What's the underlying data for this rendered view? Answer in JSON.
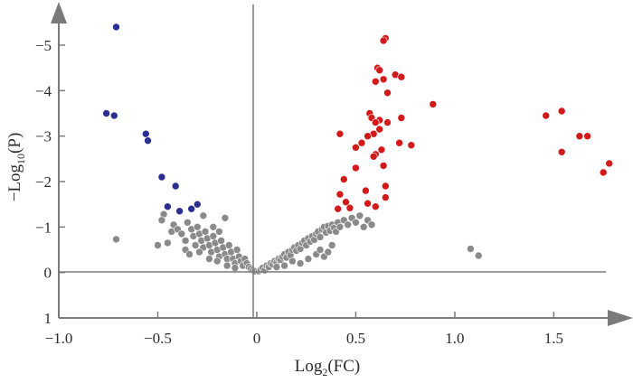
{
  "chart_data": {
    "type": "scatter",
    "title": "",
    "xlabel": {
      "base": "Log",
      "sub": "2",
      "rest": "(FC)"
    },
    "ylabel": {
      "base": "−Log",
      "sub": "10",
      "rest": "(P)"
    },
    "xlim": [
      -1.0,
      1.9
    ],
    "ylim": [
      1.0,
      -5.5
    ],
    "x_ticks": [
      -1.0,
      -0.5,
      0,
      0.5,
      1.0,
      1.5
    ],
    "x_tick_labels": [
      "−1.0",
      "−0.5",
      "0",
      "0.5",
      "1.0",
      "1.5"
    ],
    "y_ticks": [
      -5,
      -4,
      -3,
      -2,
      -1,
      0,
      1
    ],
    "y_tick_labels": [
      "−5",
      "−4",
      "−3",
      "−2",
      "−1",
      "0",
      "1"
    ],
    "grid": false,
    "colors": {
      "down": "#2c2f8f",
      "up": "#d21a1a",
      "ns": "#8a8a8a",
      "axis": "#7a7a7a"
    },
    "series": [
      {
        "group": "down",
        "points": [
          [
            -0.71,
            -5.4
          ],
          [
            -0.76,
            -3.5
          ],
          [
            -0.72,
            -3.45
          ],
          [
            -0.56,
            -3.05
          ],
          [
            -0.55,
            -2.9
          ],
          [
            -0.48,
            -2.1
          ],
          [
            -0.41,
            -1.9
          ],
          [
            -0.45,
            -1.45
          ],
          [
            -0.39,
            -1.35
          ],
          [
            -0.33,
            -1.4
          ],
          [
            -0.3,
            -1.5
          ]
        ]
      },
      {
        "group": "up",
        "points": [
          [
            0.65,
            -5.15
          ],
          [
            0.64,
            -5.1
          ],
          [
            0.61,
            -4.5
          ],
          [
            0.62,
            -4.45
          ],
          [
            0.7,
            -4.35
          ],
          [
            0.73,
            -4.3
          ],
          [
            0.64,
            -4.25
          ],
          [
            0.6,
            -4.2
          ],
          [
            0.66,
            -3.95
          ],
          [
            0.57,
            -3.5
          ],
          [
            0.89,
            -3.7
          ],
          [
            0.58,
            -3.4
          ],
          [
            0.62,
            -3.35
          ],
          [
            0.66,
            -3.3
          ],
          [
            0.6,
            -3.3
          ],
          [
            0.73,
            -3.4
          ],
          [
            0.62,
            -3.15
          ],
          [
            0.59,
            -3.05
          ],
          [
            0.56,
            -3.0
          ],
          [
            0.42,
            -3.05
          ],
          [
            0.53,
            -2.85
          ],
          [
            0.72,
            -2.85
          ],
          [
            0.78,
            -2.8
          ],
          [
            0.5,
            -2.75
          ],
          [
            0.63,
            -2.7
          ],
          [
            0.6,
            -2.6
          ],
          [
            0.59,
            -2.55
          ],
          [
            0.64,
            -2.35
          ],
          [
            0.5,
            -2.3
          ],
          [
            0.44,
            -2.05
          ],
          [
            0.65,
            -1.9
          ],
          [
            0.55,
            -1.8
          ],
          [
            0.42,
            -1.72
          ],
          [
            0.65,
            -1.65
          ],
          [
            0.45,
            -1.55
          ],
          [
            0.56,
            -1.52
          ],
          [
            0.6,
            -1.45
          ],
          [
            0.47,
            -1.42
          ],
          [
            0.41,
            -1.4
          ],
          [
            1.46,
            -3.45
          ],
          [
            1.54,
            -3.55
          ],
          [
            1.54,
            -2.65
          ],
          [
            1.63,
            -3.0
          ],
          [
            1.67,
            -3.0
          ],
          [
            1.78,
            -2.4
          ],
          [
            1.75,
            -2.2
          ]
        ]
      },
      {
        "group": "ns",
        "points": [
          [
            -0.71,
            -0.73
          ],
          [
            -0.47,
            -1.28
          ],
          [
            -0.48,
            -1.15
          ],
          [
            -0.5,
            -0.6
          ],
          [
            -0.45,
            -0.65
          ],
          [
            -0.43,
            -0.9
          ],
          [
            -0.42,
            -1.05
          ],
          [
            -0.4,
            -0.95
          ],
          [
            -0.38,
            -0.85
          ],
          [
            -0.36,
            -0.7
          ],
          [
            -0.35,
            -1.1
          ],
          [
            -0.33,
            -0.95
          ],
          [
            -0.32,
            -0.8
          ],
          [
            -0.31,
            -0.6
          ],
          [
            -0.3,
            -1.0
          ],
          [
            -0.29,
            -0.85
          ],
          [
            -0.28,
            -0.7
          ],
          [
            -0.27,
            -0.55
          ],
          [
            -0.26,
            -0.9
          ],
          [
            -0.25,
            -0.75
          ],
          [
            -0.24,
            -0.6
          ],
          [
            -0.23,
            -0.45
          ],
          [
            -0.22,
            -0.8
          ],
          [
            -0.21,
            -0.65
          ],
          [
            -0.2,
            -0.5
          ],
          [
            -0.19,
            -0.35
          ],
          [
            -0.18,
            -0.7
          ],
          [
            -0.17,
            -0.55
          ],
          [
            -0.16,
            -0.4
          ],
          [
            -0.15,
            -0.3
          ],
          [
            -0.14,
            -0.6
          ],
          [
            -0.13,
            -0.45
          ],
          [
            -0.12,
            -0.3
          ],
          [
            -0.11,
            -0.2
          ],
          [
            -0.1,
            -0.5
          ],
          [
            -0.09,
            -0.35
          ],
          [
            -0.08,
            -0.25
          ],
          [
            -0.07,
            -0.15
          ],
          [
            -0.06,
            -0.3
          ],
          [
            -0.05,
            -0.2
          ],
          [
            -0.04,
            -0.12
          ],
          [
            -0.03,
            -0.08
          ],
          [
            -0.02,
            -0.05
          ],
          [
            -0.01,
            -0.03
          ],
          [
            -0.16,
            -1.2
          ],
          [
            -0.27,
            -1.25
          ],
          [
            -0.22,
            -1.0
          ],
          [
            -0.19,
            -0.9
          ],
          [
            -0.36,
            -0.5
          ],
          [
            -0.34,
            -0.4
          ],
          [
            -0.29,
            -0.45
          ],
          [
            -0.24,
            -0.3
          ],
          [
            -0.2,
            -0.25
          ],
          [
            -0.15,
            -0.15
          ],
          [
            -0.11,
            -0.1
          ],
          [
            0.01,
            -0.03
          ],
          [
            0.02,
            -0.06
          ],
          [
            0.03,
            -0.1
          ],
          [
            0.04,
            -0.05
          ],
          [
            0.05,
            -0.15
          ],
          [
            0.06,
            -0.12
          ],
          [
            0.07,
            -0.2
          ],
          [
            0.08,
            -0.18
          ],
          [
            0.09,
            -0.25
          ],
          [
            0.1,
            -0.22
          ],
          [
            0.11,
            -0.3
          ],
          [
            0.12,
            -0.28
          ],
          [
            0.13,
            -0.35
          ],
          [
            0.14,
            -0.4
          ],
          [
            0.15,
            -0.33
          ],
          [
            0.16,
            -0.45
          ],
          [
            0.17,
            -0.38
          ],
          [
            0.18,
            -0.5
          ],
          [
            0.19,
            -0.55
          ],
          [
            0.2,
            -0.48
          ],
          [
            0.21,
            -0.6
          ],
          [
            0.22,
            -0.52
          ],
          [
            0.23,
            -0.65
          ],
          [
            0.24,
            -0.7
          ],
          [
            0.25,
            -0.6
          ],
          [
            0.26,
            -0.75
          ],
          [
            0.27,
            -0.68
          ],
          [
            0.28,
            -0.8
          ],
          [
            0.29,
            -0.72
          ],
          [
            0.3,
            -0.85
          ],
          [
            0.31,
            -0.9
          ],
          [
            0.32,
            -0.78
          ],
          [
            0.33,
            -0.95
          ],
          [
            0.34,
            -1.0
          ],
          [
            0.35,
            -0.88
          ],
          [
            0.36,
            -1.02
          ],
          [
            0.37,
            -0.92
          ],
          [
            0.38,
            -1.05
          ],
          [
            0.39,
            -0.98
          ],
          [
            0.4,
            -0.9
          ],
          [
            0.41,
            -1.1
          ],
          [
            0.42,
            -1.0
          ],
          [
            0.44,
            -1.15
          ],
          [
            0.46,
            -1.05
          ],
          [
            0.48,
            -1.2
          ],
          [
            0.5,
            -1.1
          ],
          [
            0.52,
            -1.25
          ],
          [
            0.54,
            -1.0
          ],
          [
            0.56,
            -1.15
          ],
          [
            0.58,
            -1.05
          ],
          [
            0.3,
            -0.4
          ],
          [
            0.32,
            -0.5
          ],
          [
            0.34,
            -0.35
          ],
          [
            0.36,
            -0.45
          ],
          [
            0.38,
            -0.6
          ],
          [
            0.26,
            -0.3
          ],
          [
            0.22,
            -0.2
          ],
          [
            0.18,
            -0.25
          ],
          [
            0.14,
            -0.15
          ],
          [
            0.1,
            -0.12
          ],
          [
            1.08,
            -0.52
          ],
          [
            1.12,
            -0.37
          ]
        ]
      }
    ]
  }
}
